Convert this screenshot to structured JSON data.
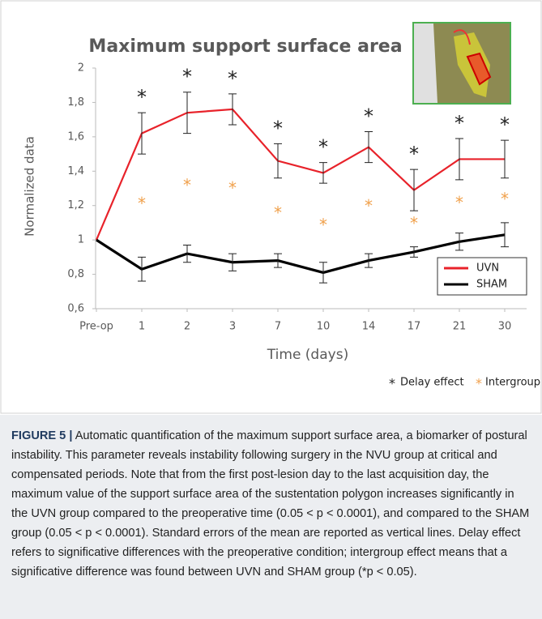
{
  "chart_data": {
    "type": "line",
    "title": "Maximum support surface area",
    "xlabel": "Time (days)",
    "ylabel": "Normalized data",
    "categories": [
      "Pre-op",
      "1",
      "2",
      "3",
      "7",
      "10",
      "14",
      "17",
      "21",
      "30"
    ],
    "series": [
      {
        "name": "UVN",
        "color": "#e8222a",
        "values": [
          1,
          1.62,
          1.74,
          1.76,
          1.46,
          1.39,
          1.54,
          1.29,
          1.47,
          1.47
        ],
        "errors": [
          null,
          0.12,
          0.12,
          0.09,
          0.1,
          0.06,
          0.09,
          0.12,
          0.12,
          0.11
        ]
      },
      {
        "name": "SHAM",
        "color": "#000000",
        "values": [
          1,
          0.83,
          0.92,
          0.87,
          0.88,
          0.81,
          0.88,
          0.93,
          0.99,
          1.03
        ],
        "errors": [
          null,
          0.07,
          0.05,
          0.05,
          0.04,
          0.06,
          0.04,
          0.03,
          0.05,
          0.07
        ]
      }
    ],
    "ylim": [
      0.6,
      2
    ],
    "yticks": [
      {
        "value": 0.6,
        "label": "0,6"
      },
      {
        "value": 0.8,
        "label": "0,8"
      },
      1,
      {
        "value": 1.2,
        "label": "1,2"
      },
      {
        "value": 1.4,
        "label": "1,4"
      },
      {
        "value": 1.6,
        "label": "1,6"
      },
      {
        "value": 1.8,
        "label": "1,8"
      },
      2
    ],
    "legend": "lower right",
    "annotations": {
      "marker": "*",
      "delay_label": "Delay effect",
      "delay_color": "#222222",
      "intergroup_label": "Intergroup effect",
      "intergroup_color": "#f0a04b"
    }
  },
  "caption": {
    "label": "FIGURE 5 |",
    "text": "Automatic quantification of the maximum support surface area, a biomarker of postural instability. This parameter reveals instability following surgery in the NVU group at critical and compensated periods. Note that from the first post-lesion day to the last acquisition day, the maximum value of the support surface area of the sustentation polygon increases significantly in the UVN group compared to the preoperative time (0.05 < p < 0.0001), and compared to the SHAM group (0.05 < p < 0.0001). Standard errors of the mean are reported as vertical lines. Delay effect refers to significative differences with the preoperative condition; intergroup effect means that a significative difference was found between UVN and SHAM group (*p < 0.05)."
  }
}
